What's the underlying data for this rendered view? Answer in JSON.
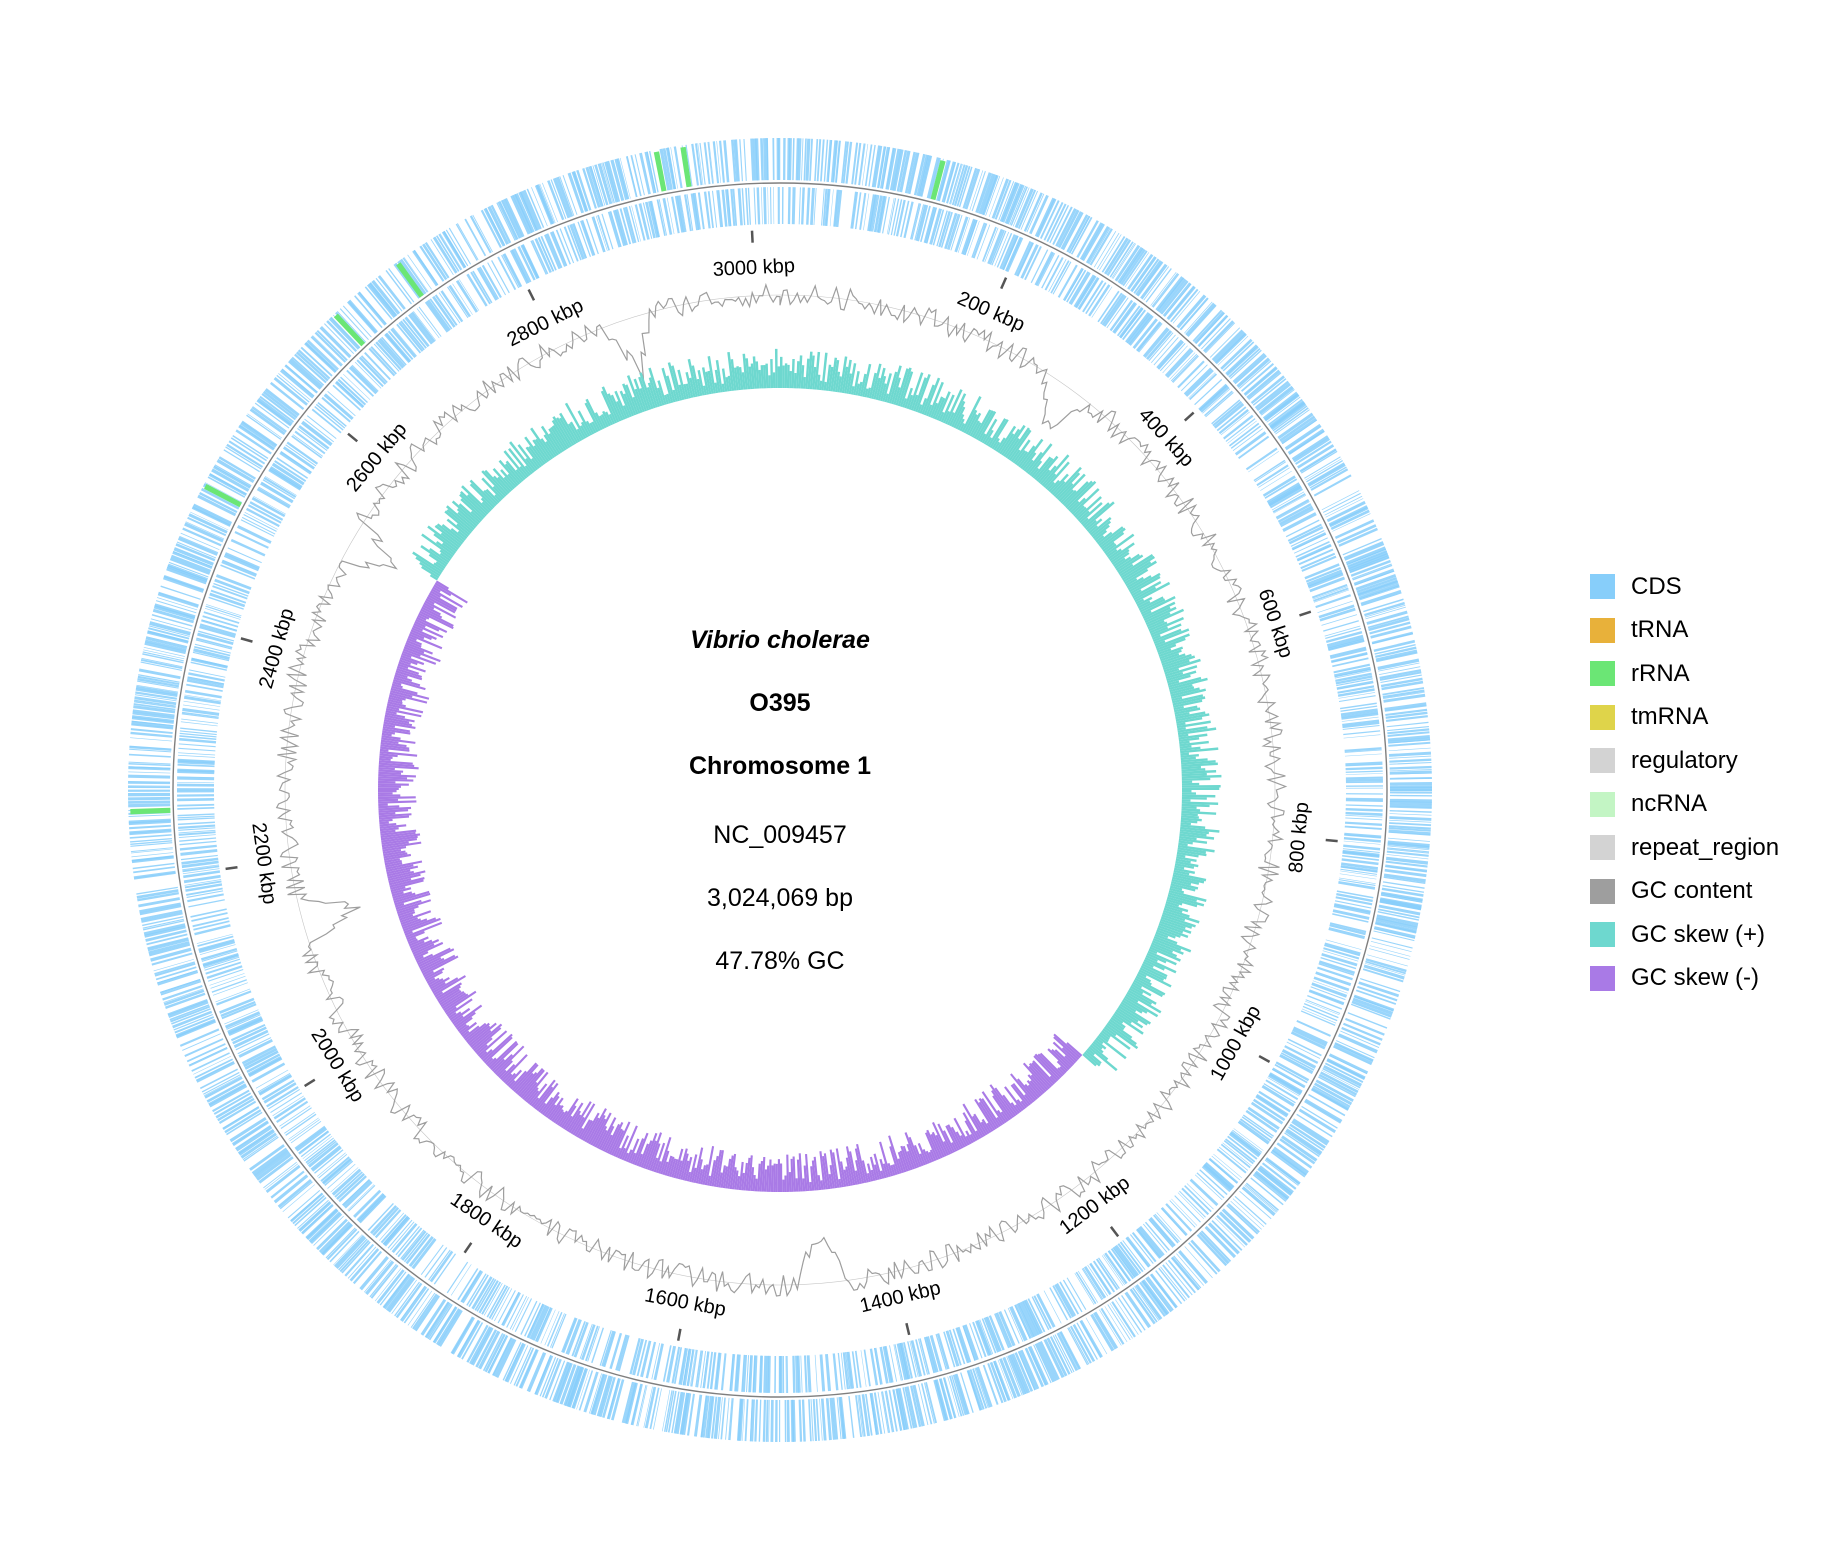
{
  "map": {
    "organism": "Vibrio cholerae",
    "strain": "O395",
    "replicon": "Chromosome 1",
    "accession": "NC_009457",
    "length": "3,024,069 bp",
    "gc": "47.78% GC",
    "total_bp": 3024069
  },
  "colors": {
    "cds": "#87cefa",
    "rrna": "#6be675",
    "gc_content": "#9e9e9e",
    "gc_skew_pos": "#6ed8cf",
    "gc_skew_neg": "#a97ae6",
    "backbone": "#7f7f7f"
  },
  "ticks": [
    {
      "kbp": 200,
      "label": "200 kbp"
    },
    {
      "kbp": 400,
      "label": "400 kbp"
    },
    {
      "kbp": 600,
      "label": "600 kbp"
    },
    {
      "kbp": 800,
      "label": "800 kbp"
    },
    {
      "kbp": 1000,
      "label": "1000 kbp"
    },
    {
      "kbp": 1200,
      "label": "1200 kbp"
    },
    {
      "kbp": 1400,
      "label": "1400 kbp"
    },
    {
      "kbp": 1600,
      "label": "1600 kbp"
    },
    {
      "kbp": 1800,
      "label": "1800 kbp"
    },
    {
      "kbp": 2000,
      "label": "2000 kbp"
    },
    {
      "kbp": 2200,
      "label": "2200 kbp"
    },
    {
      "kbp": 2400,
      "label": "2400 kbp"
    },
    {
      "kbp": 2600,
      "label": "2600 kbp"
    },
    {
      "kbp": 2800,
      "label": "2800 kbp"
    },
    {
      "kbp": 3000,
      "label": "3000 kbp"
    }
  ],
  "rrna_loci_kbp": [
    120,
    2930,
    2720,
    2660,
    2500,
    2250,
    2950
  ],
  "gc_content_peaks_kbp": [
    300,
    2870,
    2520,
    2140,
    1470
  ],
  "skew_switch_kbp": {
    "origin_side": 2530,
    "terminus_side": 1100
  },
  "legend": [
    {
      "label": "CDS",
      "color": "#87cefa"
    },
    {
      "label": "tRNA",
      "color": "#e8b13a"
    },
    {
      "label": "rRNA",
      "color": "#6be675"
    },
    {
      "label": "tmRNA",
      "color": "#dfd44a"
    },
    {
      "label": "regulatory",
      "color": "#d3d3d3"
    },
    {
      "label": "ncRNA",
      "color": "#c3f5c4"
    },
    {
      "label": "repeat_region",
      "color": "#d3d3d3"
    },
    {
      "label": "GC content",
      "color": "#9e9e9e"
    },
    {
      "label": "GC skew (+)",
      "color": "#6ed8cf"
    },
    {
      "label": "GC skew (-)",
      "color": "#a97ae6"
    }
  ]
}
